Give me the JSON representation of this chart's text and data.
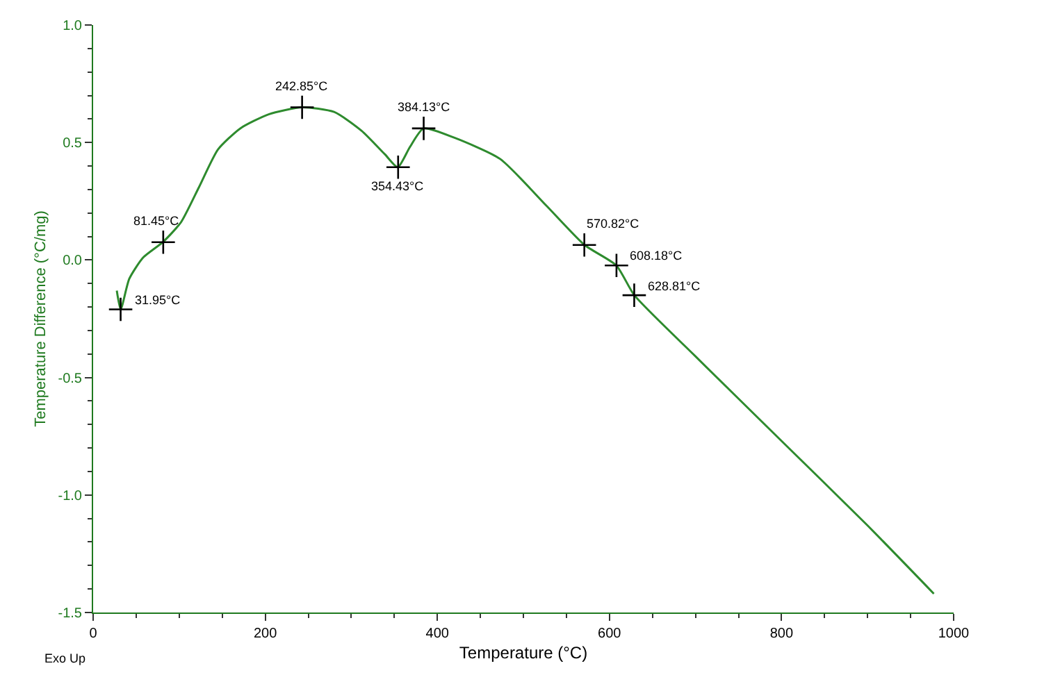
{
  "chart_data": {
    "type": "line",
    "xlabel": "Temperature (°C)",
    "ylabel": "Temperature Difference (°C/mg)",
    "xlim": [
      0,
      1000
    ],
    "xticks": [
      0,
      200,
      400,
      600,
      800,
      1000
    ],
    "ylim": [
      -1.5,
      1.0
    ],
    "yticks": [
      {
        "value": -1.5,
        "label": "-1.5"
      },
      {
        "value": -1.0,
        "label": "-1.0"
      },
      {
        "value": -0.5,
        "label": "-0.5"
      },
      {
        "value": 0.0,
        "label": "0.0"
      },
      {
        "value": 0.5,
        "label": "0.5"
      },
      {
        "value": 1.0,
        "label": "1.0"
      }
    ],
    "series": [
      {
        "color": "#2e8b2e",
        "marker": "none",
        "x": [
          27.5,
          32,
          42,
          58,
          81,
          102,
          123,
          145,
          171,
          204,
          243,
          280,
          312,
          339,
          354,
          368,
          384,
          420,
          473,
          527,
          571,
          608,
          629,
          700,
          800,
          900,
          977
        ],
        "values": [
          -0.13,
          -0.21,
          -0.08,
          0.01,
          0.076,
          0.16,
          0.31,
          0.47,
          0.56,
          0.62,
          0.65,
          0.63,
          0.55,
          0.45,
          0.395,
          0.48,
          0.56,
          0.52,
          0.43,
          0.23,
          0.064,
          -0.023,
          -0.15,
          -0.41,
          -0.77,
          -1.13,
          -1.42
        ]
      },
      {
        "type": "scatter",
        "color": "#000000",
        "marker": "cross",
        "x": [
          31.95,
          81.45,
          242.85,
          354.43,
          384.13,
          570.82,
          608.18,
          628.81
        ],
        "values": [
          -0.21,
          0.076,
          0.65,
          0.395,
          0.56,
          0.064,
          -0.023,
          -0.15
        ]
      }
    ],
    "annotations": [
      {
        "text": "31.95°C",
        "x": 31.95,
        "y": -0.21
      },
      {
        "text": "81.45°C",
        "x": 81.45,
        "y": 0.076
      },
      {
        "text": "242.85°C",
        "x": 242.85,
        "y": 0.65
      },
      {
        "text": "354.43°C",
        "x": 354.43,
        "y": 0.395
      },
      {
        "text": "384.13°C",
        "x": 384.13,
        "y": 0.56
      },
      {
        "text": "570.82°C",
        "x": 570.82,
        "y": 0.064
      },
      {
        "text": "608.18°C",
        "x": 608.18,
        "y": -0.023
      },
      {
        "text": "628.81°C",
        "x": 628.81,
        "y": -0.15
      },
      "Exo Up"
    ]
  }
}
